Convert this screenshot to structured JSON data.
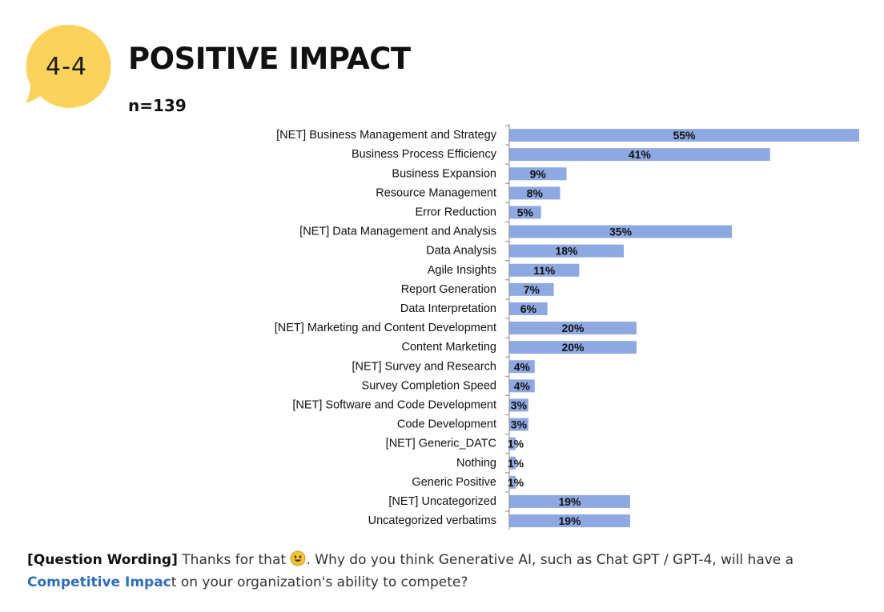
{
  "header": {
    "badge": "4-4",
    "title": "POSITIVE IMPACT",
    "sample_size": "n=139"
  },
  "colors": {
    "bar": "#8ea9e2",
    "badge": "#fbd35c"
  },
  "chart_data": {
    "type": "bar",
    "orientation": "horizontal",
    "title": "POSITIVE IMPACT",
    "xlabel": "",
    "ylabel": "",
    "xlim": [
      0,
      55
    ],
    "grid": false,
    "categories": [
      "[NET] Business Management and Strategy",
      "Business Process Efficiency",
      "Business Expansion",
      "Resource Management",
      "Error Reduction",
      "[NET] Data Management and Analysis",
      "Data Analysis",
      "Agile Insights",
      "Report Generation",
      "Data Interpretation",
      "[NET] Marketing and Content Development",
      "Content Marketing",
      "[NET] Survey and Research",
      "Survey Completion Speed",
      "[NET] Software and Code Development",
      "Code Development",
      "[NET] Generic_DATC",
      "Nothing",
      "Generic Positive",
      "[NET] Uncategorized",
      "Uncategorized verbatims"
    ],
    "values": [
      55,
      41,
      9,
      8,
      5,
      35,
      18,
      11,
      7,
      6,
      20,
      20,
      4,
      4,
      3,
      3,
      1,
      1,
      1,
      19,
      19
    ],
    "value_labels": [
      "55%",
      "41%",
      "9%",
      "8%",
      "5%",
      "35%",
      "18%",
      "11%",
      "7%",
      "6%",
      "20%",
      "20%",
      "4%",
      "4%",
      "3%",
      "3%",
      "1%",
      "1%",
      "1%",
      "19%",
      "19%"
    ]
  },
  "question": {
    "prefix": "[Question Wording]",
    "text_before_emoji": " Thanks for that ",
    "text_after_emoji": ". Why do you think Generative AI, such as Chat GPT / GPT-4, will have a ",
    "highlight_part1": "Competitive Impac",
    "highlight_part2": "t",
    "text_end": " on your organization's ability to compete?"
  }
}
